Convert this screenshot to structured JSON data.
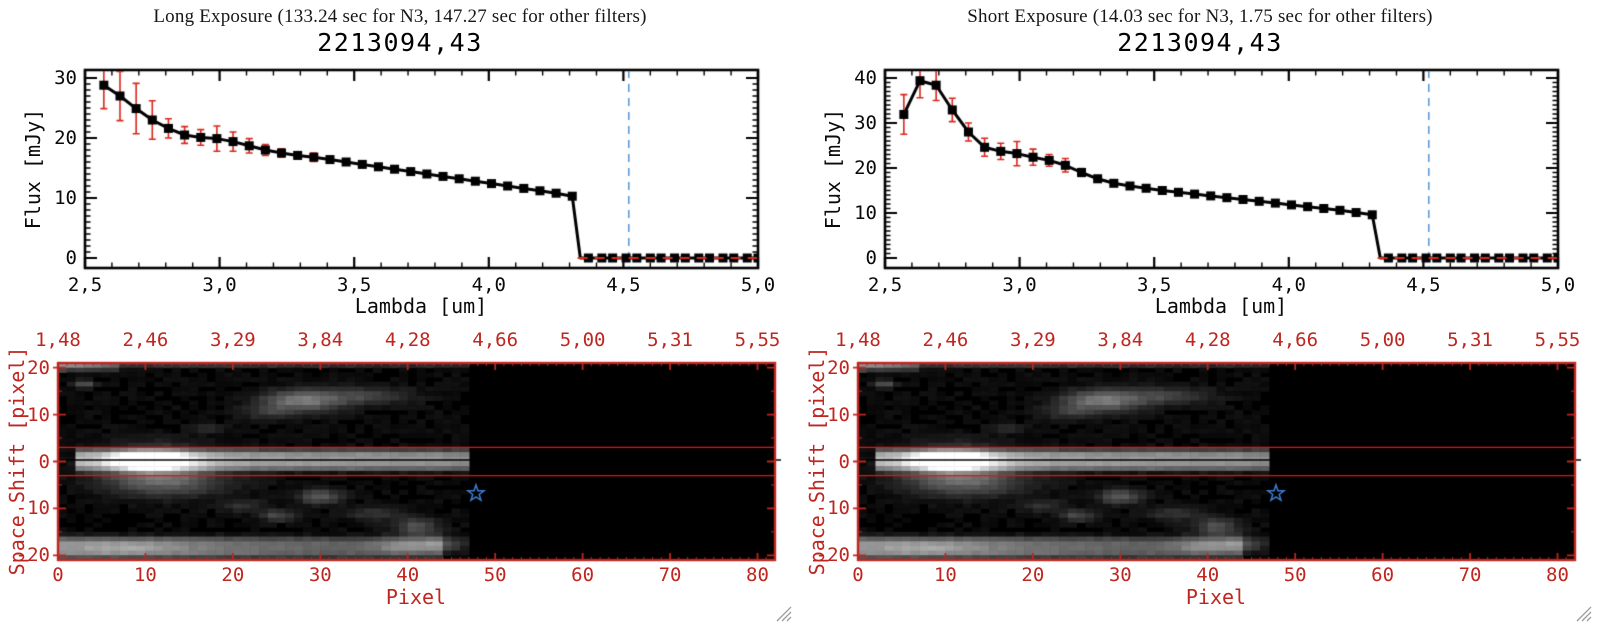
{
  "chart_data": [
    {
      "type": "line",
      "title": "2213094,43",
      "subtitle": "Long Exposure (133.24 sec for N3, 147.27 sec for other filters)",
      "xlabel": "Lambda [um]",
      "ylabel": "Flux [mJy]",
      "xlim": [
        2.5,
        5.0
      ],
      "ylim": [
        0,
        30
      ],
      "xticks": {
        "values": [
          2.5,
          3.0,
          3.5,
          4.0,
          4.5,
          5.0
        ],
        "labels": [
          "2,5",
          "3,0",
          "3,5",
          "4,0",
          "4,5",
          "5,0"
        ]
      },
      "yticks": {
        "values": [
          0,
          10,
          20,
          30
        ],
        "labels": [
          "0",
          "10",
          "20",
          "30"
        ]
      },
      "x": [
        2.57,
        2.63,
        2.69,
        2.75,
        2.81,
        2.87,
        2.93,
        2.99,
        3.05,
        3.11,
        3.17,
        3.23,
        3.29,
        3.35,
        3.41,
        3.47,
        3.53,
        3.59,
        3.65,
        3.71,
        3.77,
        3.83,
        3.89,
        3.95,
        4.01,
        4.07,
        4.13,
        4.19,
        4.25,
        4.31
      ],
      "y": [
        28.8,
        27.0,
        24.9,
        23.0,
        21.6,
        20.5,
        20.1,
        19.9,
        19.4,
        18.7,
        18.0,
        17.5,
        17.1,
        16.8,
        16.4,
        16.0,
        15.6,
        15.2,
        14.8,
        14.4,
        14.0,
        13.6,
        13.2,
        12.8,
        12.4,
        12.0,
        11.6,
        11.2,
        10.8,
        10.3
      ],
      "yerr": [
        3.9,
        4.1,
        4.2,
        3.2,
        1.6,
        1.4,
        1.3,
        2.1,
        1.6,
        1.2,
        0.9,
        0.7,
        0.6,
        0.7,
        0.6,
        0.5,
        0.5,
        0.5,
        0.4,
        0.4,
        0.4,
        0.4,
        0.3,
        0.3,
        0.3,
        0.4,
        0.4,
        0.3,
        0.3,
        0.3
      ],
      "x_zero": [
        4.37,
        4.42,
        4.46,
        4.51,
        4.55,
        4.6,
        4.64,
        4.69,
        4.73,
        4.78,
        4.82,
        4.87,
        4.91,
        4.96,
        5.0
      ],
      "cliff_x": 4.34,
      "zero_dash_start": 4.33,
      "vline_x": 4.52,
      "marker": "filled-square",
      "line_color": "#000000",
      "error_color": "#d6281e",
      "vline_color": "#5b9ad6",
      "grid": "off",
      "legend": "none"
    },
    {
      "type": "line",
      "title": "2213094,43",
      "subtitle": "Short Exposure (14.03 sec for N3, 1.75 sec for other filters)",
      "xlabel": "Lambda [um]",
      "ylabel": "Flux [mJy]",
      "xlim": [
        2.5,
        5.0
      ],
      "ylim": [
        0,
        40
      ],
      "xticks": {
        "values": [
          2.5,
          3.0,
          3.5,
          4.0,
          4.5,
          5.0
        ],
        "labels": [
          "2,5",
          "3,0",
          "3,5",
          "4,0",
          "4,5",
          "5,0"
        ]
      },
      "yticks": {
        "values": [
          0,
          10,
          20,
          30,
          40
        ],
        "labels": [
          "0",
          "10",
          "20",
          "30",
          "40"
        ]
      },
      "x": [
        2.57,
        2.63,
        2.69,
        2.75,
        2.81,
        2.87,
        2.93,
        2.99,
        3.05,
        3.11,
        3.17,
        3.23,
        3.29,
        3.35,
        3.41,
        3.47,
        3.53,
        3.59,
        3.65,
        3.71,
        3.77,
        3.83,
        3.89,
        3.95,
        4.01,
        4.07,
        4.13,
        4.19,
        4.25,
        4.31
      ],
      "y": [
        31.9,
        39.4,
        38.4,
        32.9,
        28.0,
        24.6,
        23.7,
        23.2,
        22.4,
        21.7,
        20.6,
        19.0,
        17.6,
        16.6,
        16.0,
        15.5,
        15.0,
        14.6,
        14.2,
        13.8,
        13.4,
        13.0,
        12.6,
        12.2,
        11.8,
        11.4,
        11.0,
        10.6,
        10.1,
        9.6
      ],
      "yerr": [
        4.4,
        3.8,
        3.4,
        2.6,
        2.0,
        2.0,
        1.8,
        2.7,
        1.8,
        1.3,
        1.5,
        0.9,
        0.7,
        0.6,
        0.6,
        0.5,
        0.5,
        0.5,
        0.5,
        0.4,
        0.4,
        0.4,
        0.4,
        0.4,
        0.4,
        0.4,
        0.3,
        0.3,
        0.3,
        0.3
      ],
      "x_zero": [
        4.37,
        4.42,
        4.46,
        4.51,
        4.55,
        4.6,
        4.64,
        4.69,
        4.73,
        4.78,
        4.82,
        4.87,
        4.91,
        4.96,
        5.0
      ],
      "cliff_x": 4.34,
      "zero_dash_start": 4.33,
      "vline_x": 4.52,
      "marker": "filled-square",
      "line_color": "#000000",
      "error_color": "#d6281e",
      "vline_color": "#5b9ad6",
      "grid": "off",
      "legend": "none"
    },
    {
      "type": "heatmap",
      "xlabel": "Pixel",
      "ylabel": "Space Shift [pixel]",
      "xlim": [
        0,
        82
      ],
      "ylim": [
        -21,
        21
      ],
      "xticks": {
        "values": [
          0,
          10,
          20,
          30,
          40,
          50,
          60,
          70,
          80
        ],
        "labels": [
          "0",
          "10",
          "20",
          "30",
          "40",
          "50",
          "60",
          "70",
          "80"
        ]
      },
      "yticks": {
        "values": [
          20,
          10,
          0,
          -10,
          -20
        ],
        "labels": [
          "20",
          "10",
          "0",
          "-10",
          "-20"
        ]
      },
      "top_axis_values": [
        1.48,
        2.46,
        3.29,
        3.84,
        4.28,
        4.66,
        5.0,
        5.31,
        5.55
      ],
      "top_axis_labels": [
        "1,48",
        "2,46",
        "3,29",
        "3,84",
        "4,28",
        "4,66",
        "5,00",
        "5,31",
        "5,55"
      ],
      "axis_color": "#bf2620",
      "aperture_line_color": "#e8150d",
      "aperture_lines_y": [
        3,
        -3
      ],
      "center_line_y": 0.3,
      "data_cutoff_x": 46.5,
      "star_marker": {
        "x": 47.8,
        "y": -6.8,
        "color": "#3e7ed2"
      },
      "colormap": "grayscale-black-to-white",
      "features": [
        {
          "kind": "band",
          "x0": 2,
          "x1": 46.5,
          "y": 0.3,
          "sy": 2.2,
          "amp0": 0.62,
          "amp1": 0.5
        },
        {
          "kind": "gauss",
          "x": 10.5,
          "y": 0.3,
          "sx": 3.5,
          "sy": 1.6,
          "amp": 1.0
        },
        {
          "kind": "gauss",
          "x": 11,
          "y": -1,
          "sx": 6,
          "sy": 4.2,
          "amp": 0.35
        },
        {
          "kind": "gauss",
          "x": 13,
          "y": -4.5,
          "sx": 7,
          "sy": 3,
          "amp": 0.2
        },
        {
          "kind": "gauss",
          "x": 28,
          "y": 13,
          "sx": 4.5,
          "sy": 2.2,
          "amp": 0.42
        },
        {
          "kind": "gauss",
          "x": 35.5,
          "y": 14,
          "sx": 5,
          "sy": 1.8,
          "amp": 0.2
        },
        {
          "kind": "gauss",
          "x": 24,
          "y": 10.5,
          "sx": 3,
          "sy": 1.6,
          "amp": 0.15
        },
        {
          "kind": "gauss",
          "x": 3,
          "y": 16.5,
          "sx": 1.3,
          "sy": 0.8,
          "amp": 0.28
        },
        {
          "kind": "gauss",
          "x": 17,
          "y": 7,
          "sx": 2,
          "sy": 1,
          "amp": 0.12
        },
        {
          "kind": "gauss",
          "x": 30,
          "y": -7.5,
          "sx": 2.5,
          "sy": 1.5,
          "amp": 0.3
        },
        {
          "kind": "gauss",
          "x": 25,
          "y": -11.5,
          "sx": 2,
          "sy": 1.2,
          "amp": 0.22
        },
        {
          "kind": "gauss",
          "x": 21,
          "y": -9.5,
          "sx": 2.5,
          "sy": 1.3,
          "amp": 0.15
        },
        {
          "kind": "gauss",
          "x": 36,
          "y": -11,
          "sx": 3,
          "sy": 1.5,
          "amp": 0.15
        },
        {
          "kind": "gauss",
          "x": 41,
          "y": -14,
          "sx": 2.5,
          "sy": 2,
          "amp": 0.26
        },
        {
          "kind": "gauss",
          "x": 44,
          "y": -17.5,
          "sx": 2.5,
          "sy": 1.5,
          "amp": 0.2
        },
        {
          "kind": "band",
          "x0": 0,
          "x1": 44,
          "y": -18.4,
          "sy": 2.3,
          "amp0": 0.5,
          "amp1": 0.25
        },
        {
          "kind": "gauss",
          "x": 8,
          "y": -18.5,
          "sx": 6,
          "sy": 1.5,
          "amp": 0.15
        },
        {
          "kind": "gauss",
          "x": 40,
          "y": -18,
          "sx": 4,
          "sy": 1.6,
          "amp": 0.24
        },
        {
          "kind": "band",
          "x0": 0,
          "x1": 7,
          "y": 20.4,
          "sy": 0.9,
          "amp0": 0.55,
          "amp1": 0.3
        },
        {
          "kind": "band",
          "x0": 7,
          "x1": 46.5,
          "y": 20.6,
          "sy": 0.6,
          "amp0": 0.15,
          "amp1": 0.1
        }
      ]
    }
  ],
  "icons": {
    "resize_handle": "diagonal-grip-lines"
  }
}
